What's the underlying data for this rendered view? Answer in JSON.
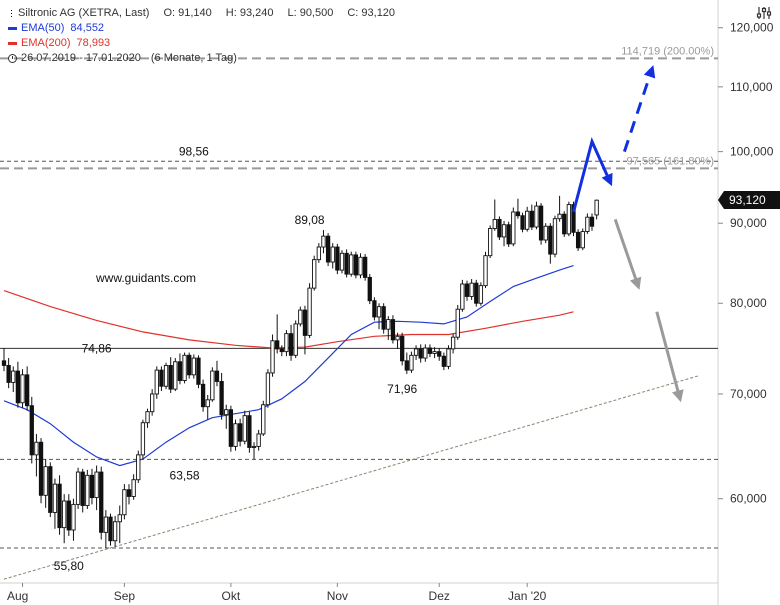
{
  "legend": {
    "title": "Siltronic AG (XETRA, Last)",
    "open": "O: 91,140",
    "high": "H: 93,240",
    "low": "L: 90,500",
    "close": "C: 93,120",
    "ema50_label": "EMA(50)",
    "ema50_value": "84,552",
    "ema200_label": "EMA(200)",
    "ema200_value": "78,993",
    "period": "26.07.2019 - 17.01.2020",
    "period_detail": "(6 Monate, 1 Tag)"
  },
  "colors": {
    "candle": "#111111",
    "ema50": "#1f3bd6",
    "ema200": "#e0322b",
    "arrow_blue": "#1230e0",
    "arrow_grey": "#9a9a9a",
    "level": "#888888",
    "trend": "#8c8470",
    "current_price_badge": "#111111"
  },
  "icons": [
    "settings-sliders-icon",
    "clock-icon"
  ],
  "chart_data": {
    "type": "candlestick",
    "source": "www.guidants.com",
    "x_tick_labels": [
      "Aug",
      "Sep",
      "Okt",
      "Nov",
      "Dez",
      "Jan '20"
    ],
    "x_tick_index": [
      4,
      26,
      49,
      72,
      94,
      113
    ],
    "y_axis": {
      "ticks": [
        60,
        70,
        80,
        90,
        100,
        110,
        120
      ],
      "tick_labels": [
        "60,000",
        "70,000",
        "80,000",
        "90,000",
        "100,000",
        "110,000",
        "120,000"
      ],
      "ylim": [
        53,
        125
      ],
      "scale": "log"
    },
    "current_price": {
      "value": 93.12,
      "label": "93,120"
    },
    "annotations": [
      {
        "text": "98,56",
        "index": 41,
        "value": 98.56
      },
      {
        "text": "89,08",
        "index": 66,
        "value": 89.08
      },
      {
        "text": "74,86",
        "index": 20,
        "value": 74.86
      },
      {
        "text": "71,96",
        "index": 86,
        "value": 71.96
      },
      {
        "text": "63,58",
        "index": 39,
        "value": 63.58
      },
      {
        "text": "55,80",
        "index": 14,
        "value": 55.8
      }
    ],
    "levels": [
      {
        "value": 114.719,
        "label": "114,719 (200.00%)",
        "style": "dashed-heavy"
      },
      {
        "value": 98.6,
        "label": "",
        "style": "dashed-thin"
      },
      {
        "value": 97.565,
        "label": "97,565 (161.80%)",
        "style": "dashed-heavy"
      },
      {
        "value": 74.86,
        "label": "",
        "style": "solid"
      },
      {
        "value": 63.58,
        "label": "",
        "style": "dashed-thin"
      },
      {
        "value": 55.8,
        "label": "",
        "style": "dashed-thin"
      }
    ],
    "trendline": {
      "from": {
        "index": 0,
        "value": 53.3
      },
      "to": {
        "index": 150,
        "value": 71.9
      }
    },
    "arrows": [
      {
        "color": "blue",
        "style": "solid",
        "points": [
          [
            123,
            91.5
          ],
          [
            127,
            101.5
          ],
          [
            131,
            95.5
          ]
        ]
      },
      {
        "color": "blue",
        "style": "dashed",
        "points": [
          [
            134,
            100
          ],
          [
            140,
            113
          ]
        ]
      },
      {
        "color": "grey",
        "style": "solid",
        "points": [
          [
            132,
            90.5
          ],
          [
            137,
            82
          ]
        ]
      },
      {
        "color": "grey",
        "style": "solid",
        "points": [
          [
            141,
            79
          ],
          [
            146,
            69.5
          ]
        ]
      }
    ],
    "ohlc": [
      [
        73.5,
        74.9,
        72.4,
        73.0
      ],
      [
        73.0,
        73.8,
        70.6,
        71.2
      ],
      [
        71.2,
        72.9,
        70.2,
        72.4
      ],
      [
        72.4,
        73.4,
        68.6,
        69.1
      ],
      [
        69.1,
        72.6,
        68.6,
        72.0
      ],
      [
        72.0,
        72.9,
        68.3,
        68.8
      ],
      [
        68.8,
        69.7,
        63.2,
        64.0
      ],
      [
        64.0,
        66.0,
        62.0,
        65.2
      ],
      [
        65.2,
        65.6,
        59.6,
        60.3
      ],
      [
        60.3,
        63.6,
        59.2,
        62.9
      ],
      [
        62.9,
        63.3,
        58.4,
        58.8
      ],
      [
        58.8,
        61.8,
        57.4,
        61.3
      ],
      [
        61.3,
        62.1,
        56.9,
        57.5
      ],
      [
        57.5,
        60.4,
        56.2,
        59.8
      ],
      [
        59.8,
        60.4,
        56.8,
        57.3
      ],
      [
        57.3,
        60.0,
        56.4,
        59.5
      ],
      [
        59.5,
        62.8,
        59.1,
        62.4
      ],
      [
        62.4,
        62.7,
        58.8,
        59.4
      ],
      [
        59.4,
        62.6,
        59.1,
        62.1
      ],
      [
        62.1,
        62.7,
        59.5,
        60.1
      ],
      [
        60.1,
        63.0,
        59.0,
        62.4
      ],
      [
        62.4,
        62.9,
        56.5,
        57.1
      ],
      [
        57.1,
        59.0,
        55.8,
        58.4
      ],
      [
        58.4,
        58.7,
        56.0,
        56.4
      ],
      [
        56.4,
        58.5,
        55.9,
        58.0
      ],
      [
        58.0,
        59.4,
        56.2,
        58.6
      ],
      [
        58.6,
        61.3,
        58.2,
        60.8
      ],
      [
        60.8,
        61.3,
        59.5,
        60.2
      ],
      [
        60.2,
        62.2,
        59.9,
        61.7
      ],
      [
        61.7,
        64.4,
        61.4,
        64.0
      ],
      [
        64.0,
        67.4,
        63.6,
        67.1
      ],
      [
        67.1,
        68.5,
        66.6,
        68.2
      ],
      [
        68.2,
        70.5,
        67.8,
        70.0
      ],
      [
        70.0,
        72.9,
        69.5,
        72.5
      ],
      [
        72.5,
        72.9,
        70.3,
        70.8
      ],
      [
        70.8,
        73.3,
        70.5,
        73.0
      ],
      [
        73.0,
        73.9,
        70.1,
        70.5
      ],
      [
        70.5,
        73.8,
        70.3,
        73.4
      ],
      [
        73.4,
        74.3,
        71.0,
        71.4
      ],
      [
        71.4,
        74.4,
        71.1,
        74.1
      ],
      [
        74.1,
        74.4,
        71.6,
        72.0
      ],
      [
        72.0,
        74.2,
        71.6,
        73.8
      ],
      [
        73.8,
        74.1,
        70.6,
        71.0
      ],
      [
        71.0,
        71.5,
        68.2,
        68.7
      ],
      [
        68.7,
        69.9,
        67.4,
        69.4
      ],
      [
        69.4,
        72.8,
        69.2,
        72.4
      ],
      [
        72.4,
        73.5,
        70.8,
        71.3
      ],
      [
        71.3,
        72.2,
        67.4,
        67.9
      ],
      [
        67.9,
        68.9,
        66.5,
        68.4
      ],
      [
        68.4,
        68.8,
        64.3,
        64.8
      ],
      [
        64.8,
        67.4,
        64.4,
        67.0
      ],
      [
        67.0,
        67.5,
        64.8,
        65.3
      ],
      [
        65.3,
        68.3,
        65.0,
        67.8
      ],
      [
        67.8,
        68.2,
        64.2,
        64.7
      ],
      [
        64.7,
        65.2,
        63.6,
        64.8
      ],
      [
        64.8,
        66.4,
        64.4,
        66.0
      ],
      [
        66.0,
        69.3,
        65.8,
        68.9
      ],
      [
        68.9,
        72.6,
        68.6,
        72.2
      ],
      [
        72.2,
        76.4,
        71.8,
        75.7
      ],
      [
        75.7,
        78.7,
        74.3,
        74.8
      ],
      [
        74.8,
        75.2,
        74.0,
        74.5
      ],
      [
        74.5,
        76.9,
        74.0,
        76.5
      ],
      [
        76.5,
        77.5,
        73.5,
        74.1
      ],
      [
        74.1,
        78.0,
        73.8,
        77.6
      ],
      [
        77.6,
        79.6,
        77.3,
        79.2
      ],
      [
        79.2,
        79.7,
        74.2,
        76.3
      ],
      [
        76.3,
        82.4,
        76.0,
        81.8
      ],
      [
        81.8,
        85.8,
        81.5,
        85.3
      ],
      [
        85.3,
        87.4,
        84.9,
        86.9
      ],
      [
        86.9,
        89.1,
        86.1,
        88.3
      ],
      [
        88.3,
        88.7,
        84.5,
        85.0
      ],
      [
        85.0,
        87.4,
        84.2,
        86.9
      ],
      [
        86.9,
        87.3,
        83.5,
        84.0
      ],
      [
        84.0,
        86.5,
        83.6,
        86.1
      ],
      [
        86.1,
        86.6,
        83.1,
        83.5
      ],
      [
        83.5,
        86.3,
        83.2,
        85.9
      ],
      [
        85.9,
        86.3,
        83.0,
        83.4
      ],
      [
        83.4,
        86.1,
        83.0,
        85.6
      ],
      [
        85.6,
        86.0,
        82.7,
        83.1
      ],
      [
        83.1,
        83.5,
        79.9,
        80.3
      ],
      [
        80.3,
        80.7,
        78.0,
        78.4
      ],
      [
        78.4,
        80.0,
        77.0,
        79.6
      ],
      [
        79.6,
        80.0,
        76.5,
        77.0
      ],
      [
        77.0,
        78.5,
        75.8,
        78.1
      ],
      [
        78.1,
        78.6,
        75.4,
        75.8
      ],
      [
        75.8,
        76.6,
        74.8,
        76.2
      ],
      [
        76.2,
        76.6,
        73.0,
        73.5
      ],
      [
        73.5,
        74.4,
        72.1,
        72.5
      ],
      [
        72.5,
        74.5,
        72.2,
        74.1
      ],
      [
        74.1,
        75.2,
        73.6,
        74.8
      ],
      [
        74.8,
        75.3,
        73.3,
        73.8
      ],
      [
        73.8,
        75.3,
        73.4,
        74.9
      ],
      [
        74.9,
        75.3,
        73.9,
        74.3
      ],
      [
        74.3,
        75.0,
        73.8,
        74.5
      ],
      [
        74.5,
        74.9,
        73.5,
        74.0
      ],
      [
        74.0,
        74.4,
        72.5,
        72.9
      ],
      [
        72.9,
        75.2,
        72.6,
        74.8
      ],
      [
        74.8,
        76.5,
        74.3,
        76.1
      ],
      [
        76.1,
        79.8,
        75.8,
        79.3
      ],
      [
        79.3,
        82.8,
        79.0,
        82.3
      ],
      [
        82.3,
        82.7,
        80.3,
        80.8
      ],
      [
        80.8,
        82.9,
        80.4,
        82.4
      ],
      [
        82.4,
        82.8,
        79.6,
        80.0
      ],
      [
        80.0,
        82.5,
        79.7,
        82.1
      ],
      [
        82.1,
        86.3,
        81.8,
        85.8
      ],
      [
        85.8,
        89.7,
        85.5,
        89.3
      ],
      [
        89.3,
        93.2,
        89.0,
        90.5
      ],
      [
        90.5,
        90.9,
        87.8,
        88.2
      ],
      [
        88.2,
        90.3,
        87.0,
        89.8
      ],
      [
        89.8,
        90.2,
        86.9,
        87.3
      ],
      [
        87.3,
        92.1,
        87.0,
        91.5
      ],
      [
        91.5,
        93.3,
        90.6,
        91.0
      ],
      [
        91.0,
        91.4,
        88.8,
        89.2
      ],
      [
        89.2,
        92.2,
        88.9,
        91.6
      ],
      [
        91.6,
        92.5,
        89.1,
        89.5
      ],
      [
        89.5,
        92.9,
        89.2,
        92.3
      ],
      [
        92.3,
        92.7,
        87.2,
        87.8
      ],
      [
        87.8,
        90.0,
        87.4,
        89.6
      ],
      [
        89.6,
        90.0,
        84.8,
        86.0
      ],
      [
        86.0,
        91.0,
        85.6,
        90.6
      ],
      [
        90.6,
        93.7,
        90.2,
        91.2
      ],
      [
        91.2,
        91.6,
        88.2,
        88.6
      ],
      [
        88.6,
        92.9,
        88.3,
        92.5
      ],
      [
        92.5,
        92.9,
        88.3,
        88.8
      ],
      [
        88.8,
        89.2,
        86.4,
        86.8
      ],
      [
        86.8,
        89.3,
        86.5,
        88.9
      ],
      [
        88.9,
        91.3,
        88.6,
        90.8
      ],
      [
        90.8,
        91.3,
        89.0,
        89.6
      ],
      [
        91.1,
        93.2,
        90.5,
        93.1
      ]
    ],
    "ema50": [
      [
        0,
        69.3
      ],
      [
        5,
        68.4
      ],
      [
        10,
        67.0
      ],
      [
        15,
        65.2
      ],
      [
        20,
        63.8
      ],
      [
        25,
        63.0
      ],
      [
        30,
        63.6
      ],
      [
        35,
        65.2
      ],
      [
        40,
        66.6
      ],
      [
        45,
        67.6
      ],
      [
        50,
        68.0
      ],
      [
        55,
        68.4
      ],
      [
        60,
        69.5
      ],
      [
        65,
        71.3
      ],
      [
        70,
        73.8
      ],
      [
        75,
        76.4
      ],
      [
        80,
        77.8
      ],
      [
        85,
        77.9
      ],
      [
        90,
        77.8
      ],
      [
        95,
        77.6
      ],
      [
        100,
        78.4
      ],
      [
        105,
        80.2
      ],
      [
        110,
        82.0
      ],
      [
        115,
        83.0
      ],
      [
        120,
        84.0
      ],
      [
        123,
        84.552
      ]
    ],
    "ema200": [
      [
        0,
        81.5
      ],
      [
        10,
        79.6
      ],
      [
        20,
        78.0
      ],
      [
        30,
        76.7
      ],
      [
        40,
        75.8
      ],
      [
        50,
        75.2
      ],
      [
        58,
        74.9
      ],
      [
        65,
        75.0
      ],
      [
        72,
        75.6
      ],
      [
        80,
        76.2
      ],
      [
        88,
        76.4
      ],
      [
        96,
        76.4
      ],
      [
        104,
        77.1
      ],
      [
        112,
        77.9
      ],
      [
        120,
        78.6
      ],
      [
        123,
        78.993
      ]
    ]
  }
}
